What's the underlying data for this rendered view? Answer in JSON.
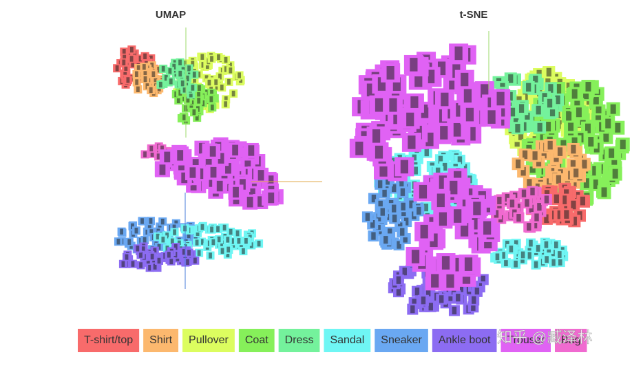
{
  "panels": [
    {
      "title": "UMAP"
    },
    {
      "title": "t-SNE"
    }
  ],
  "legend": [
    {
      "label": "T-shirt/top",
      "color": "#f86b6b"
    },
    {
      "label": "Shirt",
      "color": "#fcb86e"
    },
    {
      "label": "Pullover",
      "color": "#dcfd5f"
    },
    {
      "label": "Coat",
      "color": "#86f05a"
    },
    {
      "label": "Dress",
      "color": "#74f29c"
    },
    {
      "label": "Sandal",
      "color": "#6ff6f4"
    },
    {
      "label": "Sneaker",
      "color": "#6aa8f2"
    },
    {
      "label": "Ankle boot",
      "color": "#8c6cf2"
    },
    {
      "label": "Trouser",
      "color": "#e062f4"
    },
    {
      "label": "Bag",
      "color": "#f06ad0"
    }
  ],
  "watermark": "知乎 @臧泽林"
}
